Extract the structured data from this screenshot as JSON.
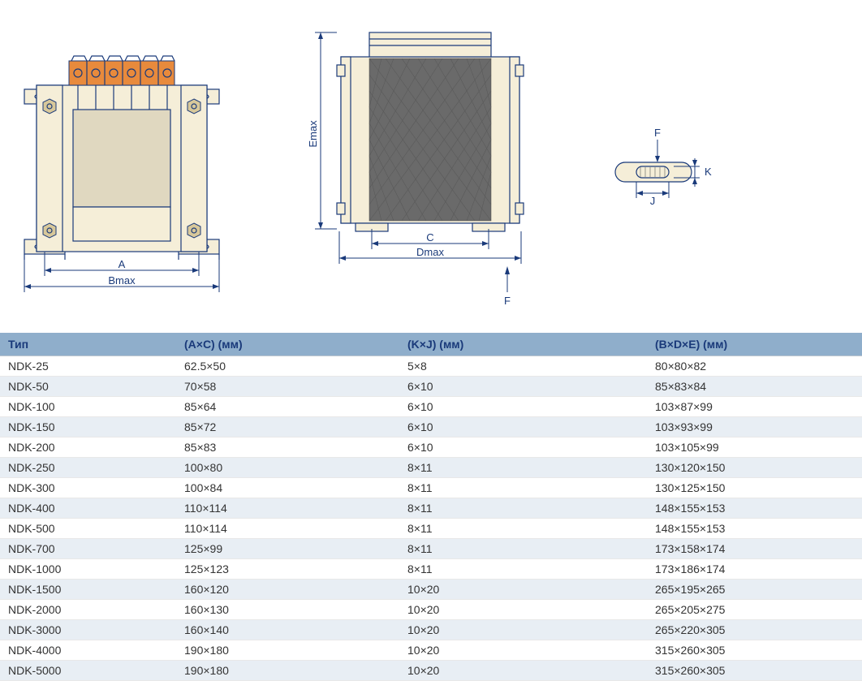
{
  "diagram": {
    "front": {
      "labels": {
        "A": "A",
        "Bmax": "Bmax"
      },
      "colors": {
        "body": "#f5eed8",
        "outline": "#1a3a7a",
        "terminal": "#e88a3c",
        "screw": "#d8c89a",
        "coil_window": "#e0d8c0"
      }
    },
    "side": {
      "labels": {
        "C": "C",
        "Dmax": "Dmax",
        "Emax": "Emax",
        "F_top": "F",
        "F_bottom": "F"
      },
      "colors": {
        "body": "#f5eed8",
        "core": "#6a6a6a"
      }
    },
    "slot": {
      "labels": {
        "F": "F",
        "J": "J",
        "K": "K"
      },
      "colors": {
        "fill": "#f5eed8",
        "outline": "#1a3a7a"
      }
    },
    "label_color": "#1a3a7a",
    "label_fontsize": 13
  },
  "table": {
    "type": "table",
    "header_bg": "#8faecb",
    "header_fg": "#1a3a7a",
    "stripe_a": "#ffffff",
    "stripe_b": "#e8eef4",
    "columns": [
      {
        "key": "type",
        "label": "Тип"
      },
      {
        "key": "ac",
        "label": "(А×С) (мм)"
      },
      {
        "key": "kj",
        "label": "(K×J) (мм)"
      },
      {
        "key": "bde",
        "label": "(B×D×E) (мм)"
      }
    ],
    "rows": [
      [
        "NDK-25",
        "62.5×50",
        "5×8",
        "80×80×82"
      ],
      [
        "NDK-50",
        "70×58",
        "6×10",
        "85×83×84"
      ],
      [
        "NDK-100",
        "85×64",
        "6×10",
        "103×87×99"
      ],
      [
        "NDK-150",
        "85×72",
        "6×10",
        "103×93×99"
      ],
      [
        "NDK-200",
        "85×83",
        "6×10",
        "103×105×99"
      ],
      [
        "NDK-250",
        "100×80",
        "8×11",
        "130×120×150"
      ],
      [
        "NDK-300",
        "100×84",
        "8×11",
        "130×125×150"
      ],
      [
        "NDK-400",
        "110×114",
        "8×11",
        "148×155×153"
      ],
      [
        "NDK-500",
        "110×114",
        "8×11",
        "148×155×153"
      ],
      [
        "NDK-700",
        "125×99",
        "8×11",
        "173×158×174"
      ],
      [
        "NDK-1000",
        "125×123",
        "8×11",
        "173×186×174"
      ],
      [
        "NDK-1500",
        "160×120",
        "10×20",
        "265×195×265"
      ],
      [
        "NDK-2000",
        "160×130",
        "10×20",
        "265×205×275"
      ],
      [
        "NDK-3000",
        "160×140",
        "10×20",
        "265×220×305"
      ],
      [
        "NDK-4000",
        "190×180",
        "10×20",
        "315×260×305"
      ],
      [
        "NDK-5000",
        "190×180",
        "10×20",
        "315×260×305"
      ]
    ]
  }
}
